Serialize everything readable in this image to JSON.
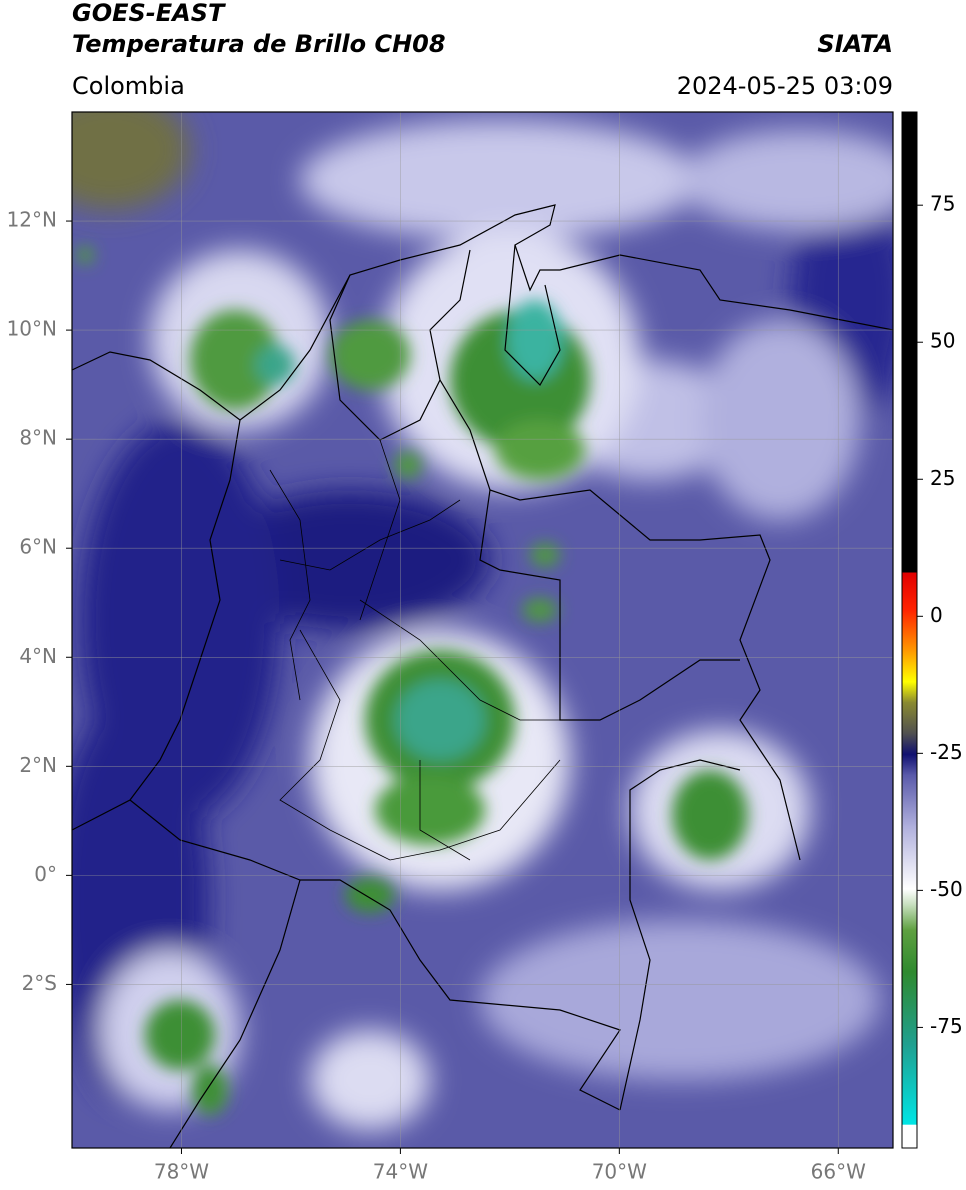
{
  "header": {
    "title": "GOES-EAST",
    "subtitle": "Temperatura de Brillo CH08",
    "source": "SIATA",
    "region": "Colombia",
    "timestamp": "2024-05-25 03:09"
  },
  "map": {
    "xlim": [
      -80,
      -65
    ],
    "ylim": [
      -5,
      14
    ],
    "xticks": [
      {
        "value": -78,
        "label": "78°W"
      },
      {
        "value": -74,
        "label": "74°W"
      },
      {
        "value": -70,
        "label": "70°W"
      },
      {
        "value": -66,
        "label": "66°W"
      }
    ],
    "yticks": [
      {
        "value": 12,
        "label": "12°N"
      },
      {
        "value": 10,
        "label": "10°N"
      },
      {
        "value": 8,
        "label": "8°N"
      },
      {
        "value": 6,
        "label": "6°N"
      },
      {
        "value": 4,
        "label": "4°N"
      },
      {
        "value": 2,
        "label": "2°N"
      },
      {
        "value": 0,
        "label": "0°"
      },
      {
        "value": -2,
        "label": "2°S"
      }
    ]
  },
  "colorbar": {
    "lim": [
      -97,
      92
    ],
    "ticks": [
      75,
      50,
      25,
      0,
      -25,
      -50,
      -75
    ]
  }
}
